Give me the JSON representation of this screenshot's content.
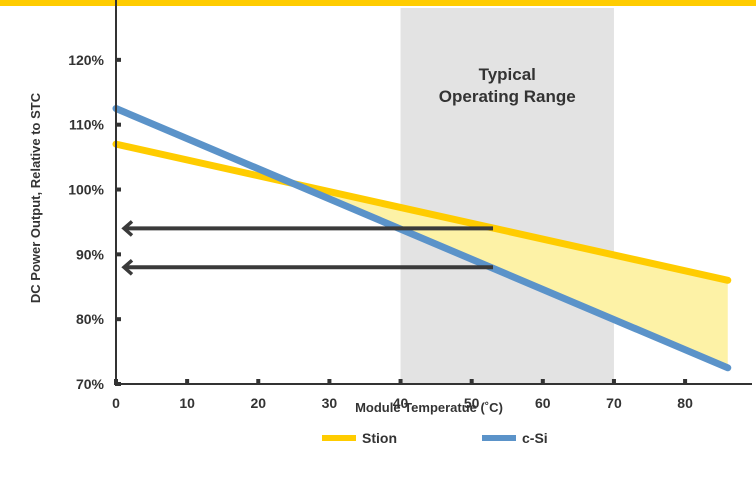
{
  "colors": {
    "accent": "#FFCC00",
    "stion": "#FFCC00",
    "csi": "#5B93C9",
    "band": "#E3E3E3",
    "fill": "#FDF2A6",
    "arrow": "#3A3A3A",
    "axis": "#333333"
  },
  "chart_data": {
    "type": "line",
    "title": "",
    "xlabel": "Module Temperatue (˚C)",
    "ylabel": "DC Power Output, Relative to STC",
    "xlim": [
      0,
      88
    ],
    "ylim": [
      70,
      128
    ],
    "x_ticks": [
      0,
      10,
      20,
      30,
      40,
      50,
      60,
      70,
      80
    ],
    "y_ticks": [
      70,
      80,
      90,
      100,
      110,
      120
    ],
    "y_tick_labels": [
      "70%",
      "80%",
      "90%",
      "100%",
      "110%",
      "120%"
    ],
    "grid": false,
    "legend": "bottom-center",
    "series": [
      {
        "name": "Stion",
        "x": [
          0,
          86
        ],
        "values": [
          107,
          86
        ],
        "color": "#FFCC00"
      },
      {
        "name": "c-Si",
        "x": [
          0,
          86
        ],
        "values": [
          112.5,
          72.5
        ],
        "color": "#5B93C9"
      }
    ],
    "shaded_region": {
      "x": [
        40,
        70
      ],
      "label_lines": [
        "Typical",
        "Operating Range"
      ]
    },
    "difference_fill": {
      "x_from": 25,
      "x_to": 86
    },
    "arrows": [
      {
        "from_x": 53,
        "to_x": 0,
        "y": 94
      },
      {
        "from_x": 53,
        "to_x": 0,
        "y": 88
      }
    ]
  }
}
